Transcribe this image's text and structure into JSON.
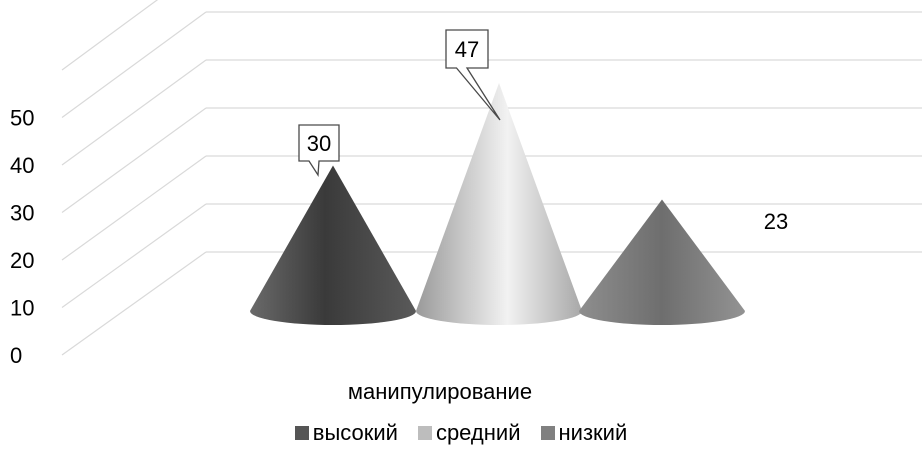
{
  "chart_data": {
    "type": "bar",
    "shape": "cone-3d",
    "categories": [
      "манипулирование"
    ],
    "xlabel": "манипулирование",
    "y_ticks": [
      "0",
      "10",
      "20",
      "30",
      "40",
      "50"
    ],
    "ylim": [
      0,
      50
    ],
    "grid": true,
    "legend_position": "bottom",
    "series": [
      {
        "name": "высокий",
        "values": [
          30
        ],
        "data_label": "30",
        "color": "#555555"
      },
      {
        "name": "средний",
        "values": [
          47
        ],
        "data_label": "47",
        "color": "#bdbdbd"
      },
      {
        "name": "низкий",
        "values": [
          23
        ],
        "data_label": "23",
        "color": "#808080"
      }
    ]
  }
}
